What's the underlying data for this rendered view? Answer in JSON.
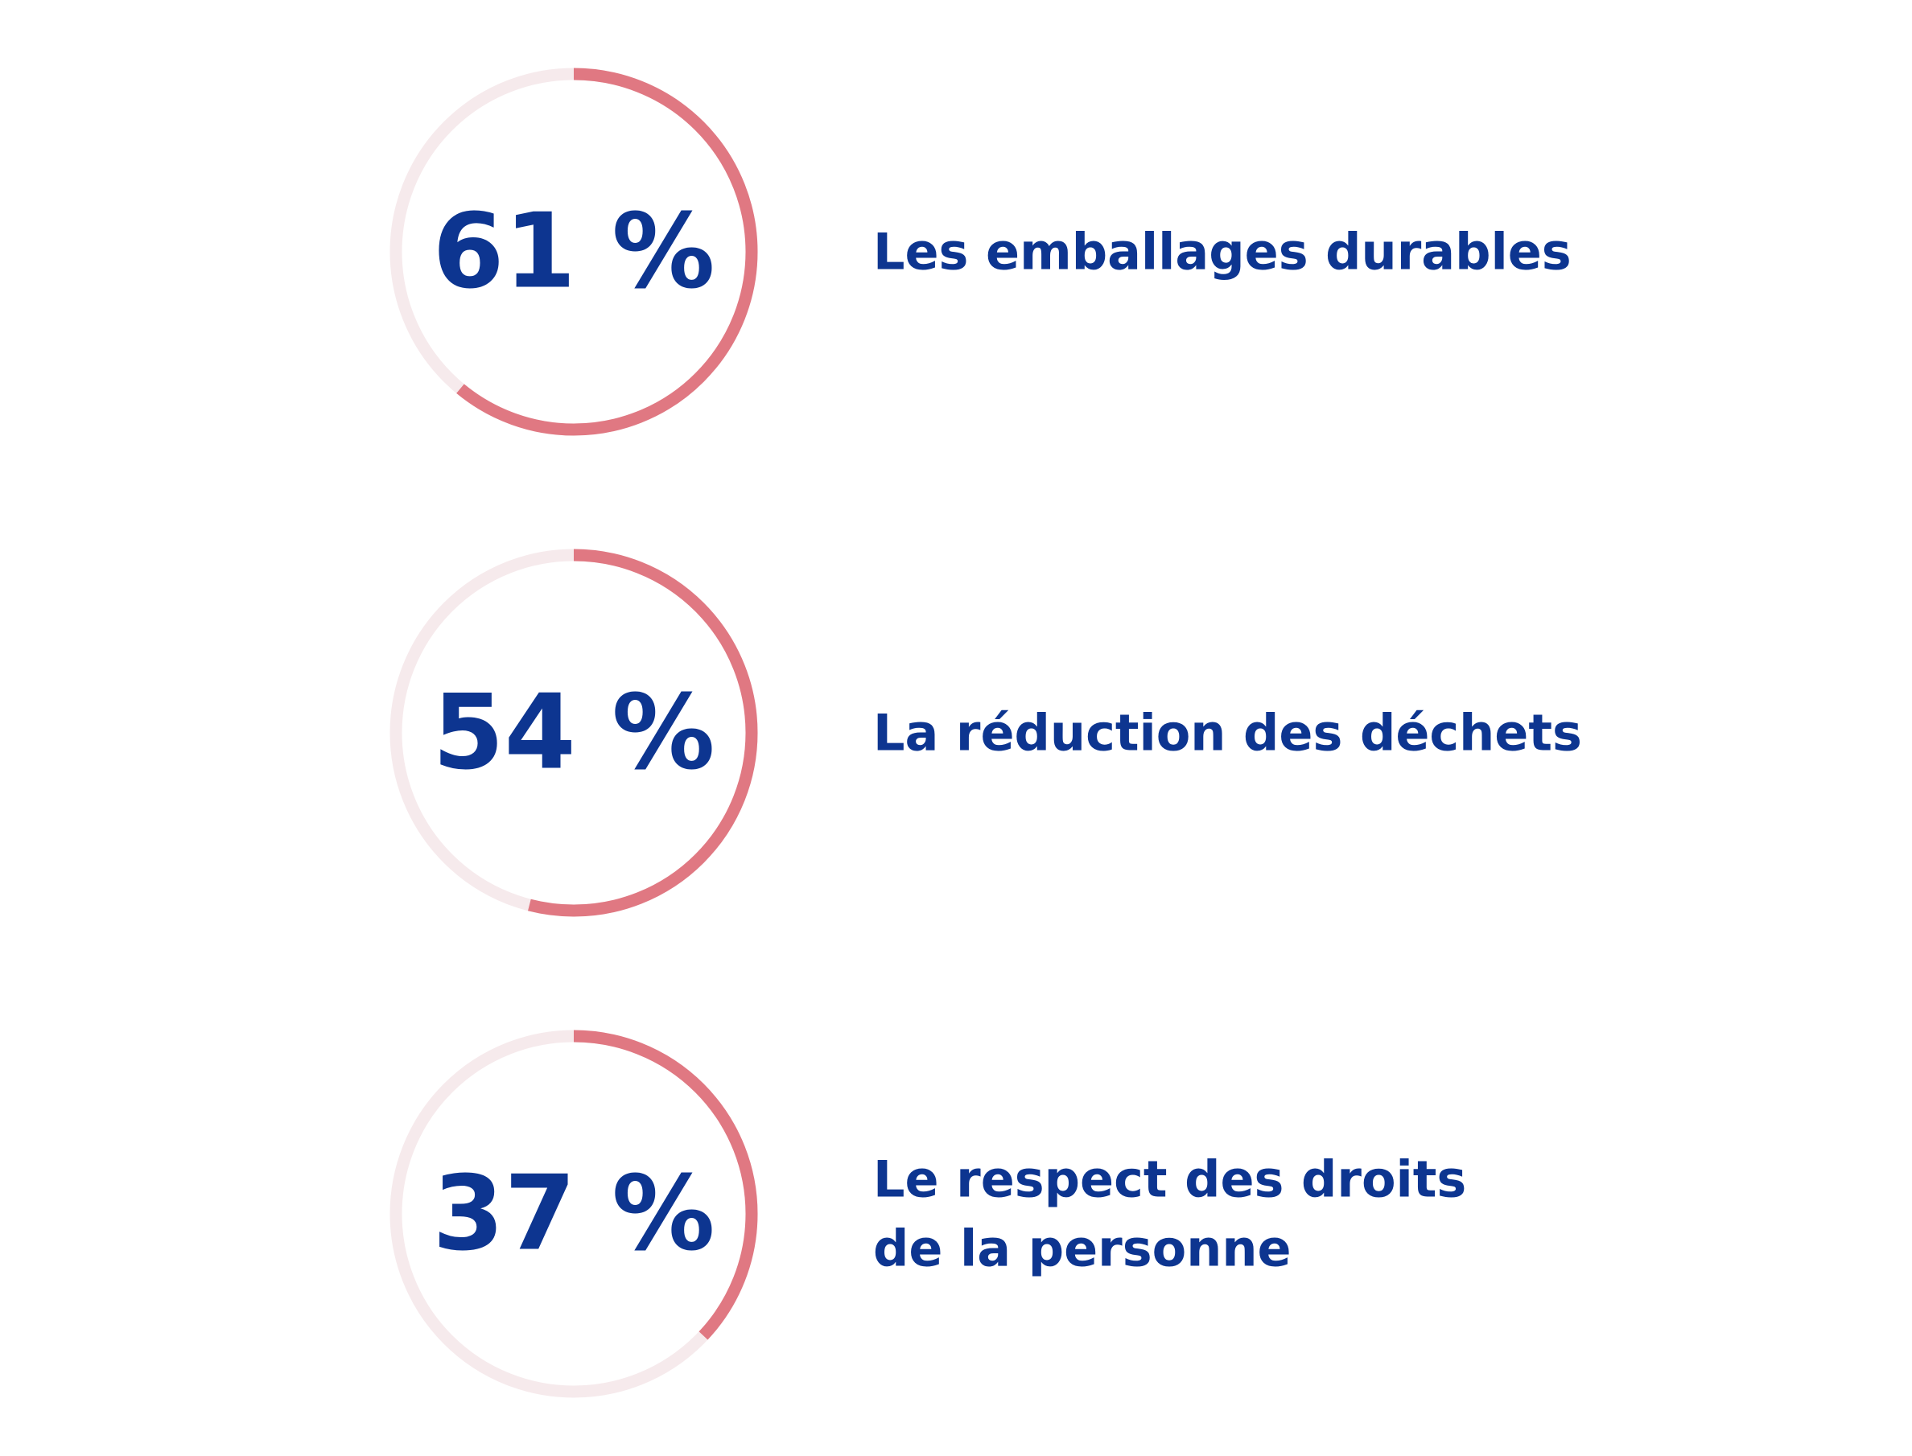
{
  "colors": {
    "track": "#f6eaec",
    "value": "#e07882",
    "text": "#0d3590"
  },
  "chart_data": {
    "type": "progress-rings",
    "items": [
      {
        "value": 61,
        "display": "61 %",
        "label_lines": [
          "Les emballages durables"
        ]
      },
      {
        "value": 54,
        "display": "54 %",
        "label_lines": [
          "La réduction des déchets"
        ]
      },
      {
        "value": 37,
        "display": "37 %",
        "label_lines": [
          "Le respect des droits",
          "de la personne"
        ]
      }
    ]
  }
}
